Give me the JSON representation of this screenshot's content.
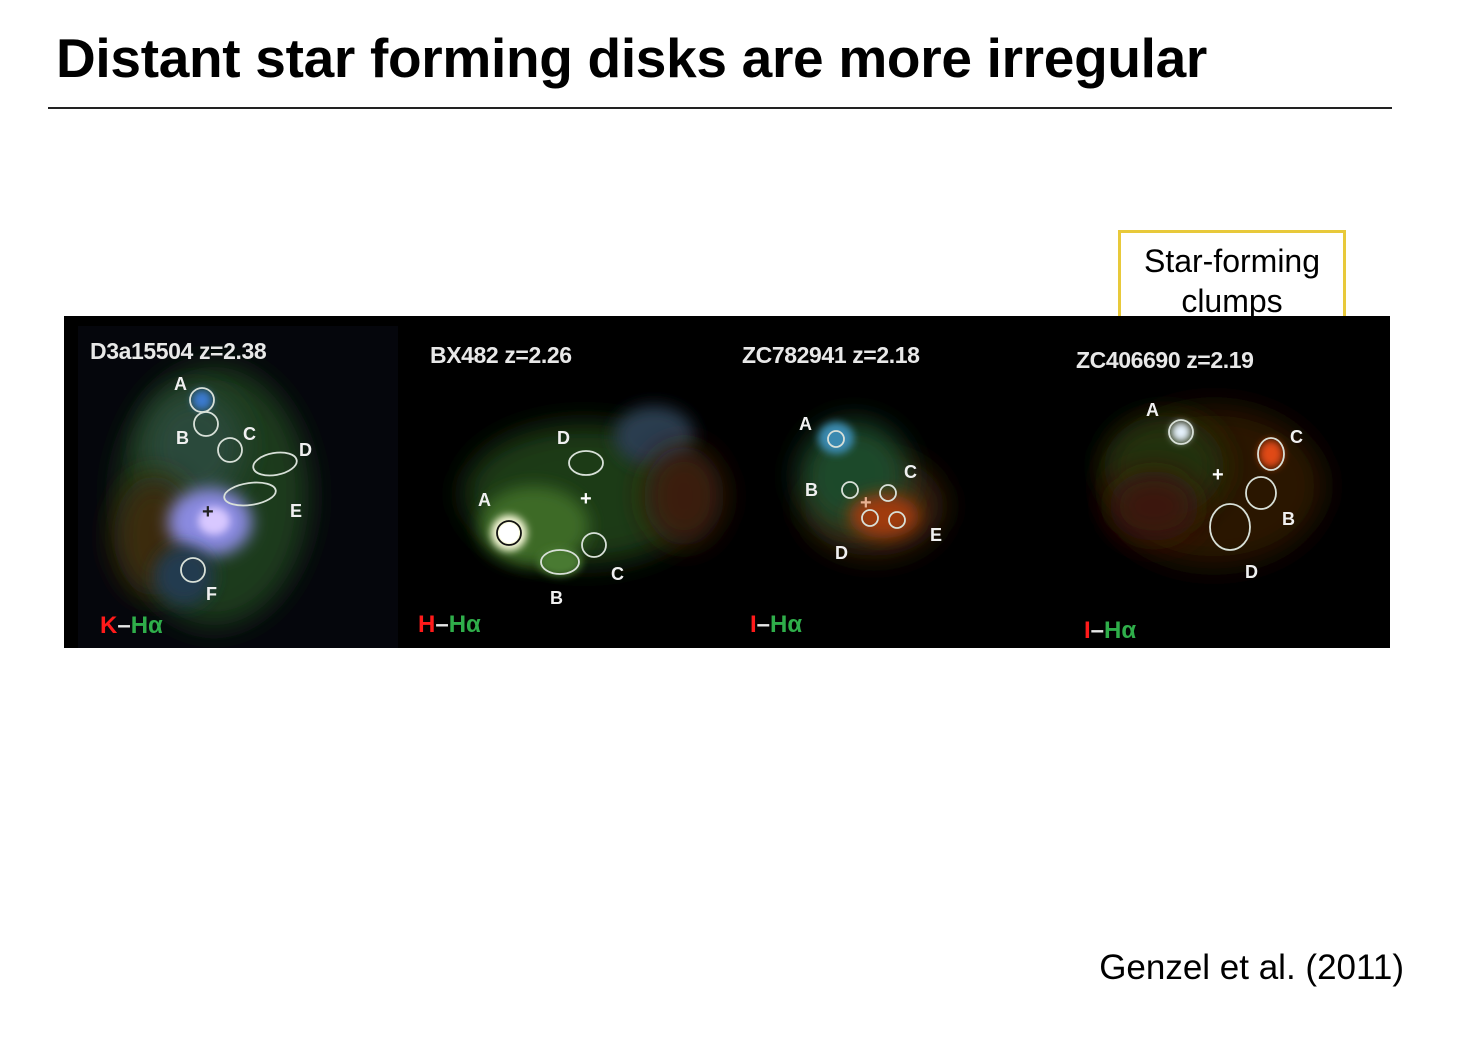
{
  "slide": {
    "title": "Distant star forming disks are more irregular",
    "citation": "Genzel et al. (2011)",
    "callout": {
      "line1": "Star-forming",
      "line2": "clumps"
    }
  },
  "figure": {
    "panels": [
      {
        "name": "D3a15504 z=2.38",
        "band_a": "K",
        "dash": "–",
        "band_b": "Hα",
        "clumps": [
          "A",
          "B",
          "C",
          "D",
          "E",
          "F"
        ]
      },
      {
        "name": "BX482 z=2.26",
        "band_a": "H",
        "dash": "–",
        "band_b": "Hα",
        "clumps": [
          "A",
          "B",
          "C",
          "D"
        ]
      },
      {
        "name": "ZC782941 z=2.18",
        "band_a": "I",
        "dash": "–",
        "band_b": "Hα",
        "clumps": [
          "A",
          "B",
          "C",
          "D",
          "E"
        ]
      },
      {
        "name": "ZC406690 z=2.19",
        "band_a": "I",
        "dash": "–",
        "band_b": "Hα",
        "clumps": [
          "A",
          "B",
          "C",
          "D"
        ]
      }
    ],
    "center_marker": "+"
  },
  "colors": {
    "callout_border": "#e8c93a",
    "band_red": "#ff1a1a",
    "band_green": "#2fae4a"
  }
}
